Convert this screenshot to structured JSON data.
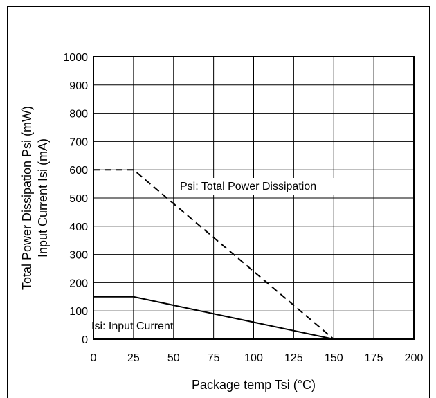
{
  "chart_data": {
    "type": "line",
    "title": "",
    "xlabel": "Package temp Tsi (°C)",
    "ylabel_lines": [
      "Total Power Dissipation Psi (mW)",
      "Input Current Isi (mA)"
    ],
    "xlim": [
      0,
      200
    ],
    "ylim": [
      0,
      1000
    ],
    "x_ticks": [
      0,
      25,
      50,
      75,
      100,
      125,
      150,
      175,
      200
    ],
    "y_ticks": [
      0,
      100,
      200,
      300,
      400,
      500,
      600,
      700,
      800,
      900,
      1000
    ],
    "grid": true,
    "legend": "none",
    "series": [
      {
        "name": "Psi: Total Power Dissipation",
        "style": "dashed",
        "x": [
          0,
          25,
          150
        ],
        "y": [
          600,
          600,
          0
        ]
      },
      {
        "name": "Isi: Input Current",
        "style": "solid",
        "x": [
          0,
          25,
          150
        ],
        "y": [
          150,
          150,
          0
        ]
      }
    ]
  }
}
